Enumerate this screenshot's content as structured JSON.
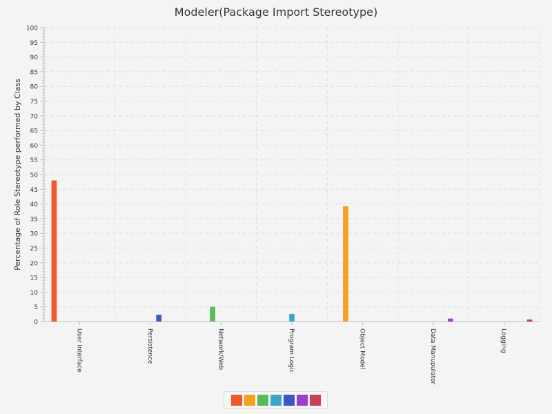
{
  "chart_data": {
    "type": "bar",
    "title": "Modeler(Package Import Stereotype)",
    "xlabel": "",
    "ylabel": "Percentage of Role Stereotype performed by Class",
    "ylim": [
      0,
      100
    ],
    "yticks": [
      0,
      5,
      10,
      15,
      20,
      25,
      30,
      35,
      40,
      45,
      50,
      55,
      60,
      65,
      70,
      75,
      80,
      85,
      90,
      95,
      100
    ],
    "grid": true,
    "legend_position": "bottom",
    "categories": [
      "User Interface",
      "Persistence",
      "Network/Web",
      "Program Logic",
      "Object Model",
      "Data Manupulator",
      "Logging"
    ],
    "series": [
      {
        "color": "#f05a28",
        "values": [
          48,
          0,
          0,
          0,
          0,
          0,
          0
        ]
      },
      {
        "color": "#f5a020",
        "values": [
          0,
          0,
          0,
          0,
          39.2,
          0,
          0
        ]
      },
      {
        "color": "#5cb85c",
        "values": [
          0,
          0,
          5,
          0,
          0,
          0,
          0
        ]
      },
      {
        "color": "#3aa7c9",
        "values": [
          0,
          0,
          0,
          2.6,
          0,
          0,
          0
        ]
      },
      {
        "color": "#3a56c7",
        "values": [
          0,
          2.3,
          0,
          0,
          0,
          0,
          0
        ]
      },
      {
        "color": "#9b3fc9",
        "values": [
          0,
          0,
          0,
          0,
          0,
          1,
          0
        ]
      },
      {
        "color": "#c9405e",
        "values": [
          0,
          0,
          0,
          0,
          0,
          0,
          0.7
        ]
      }
    ]
  }
}
